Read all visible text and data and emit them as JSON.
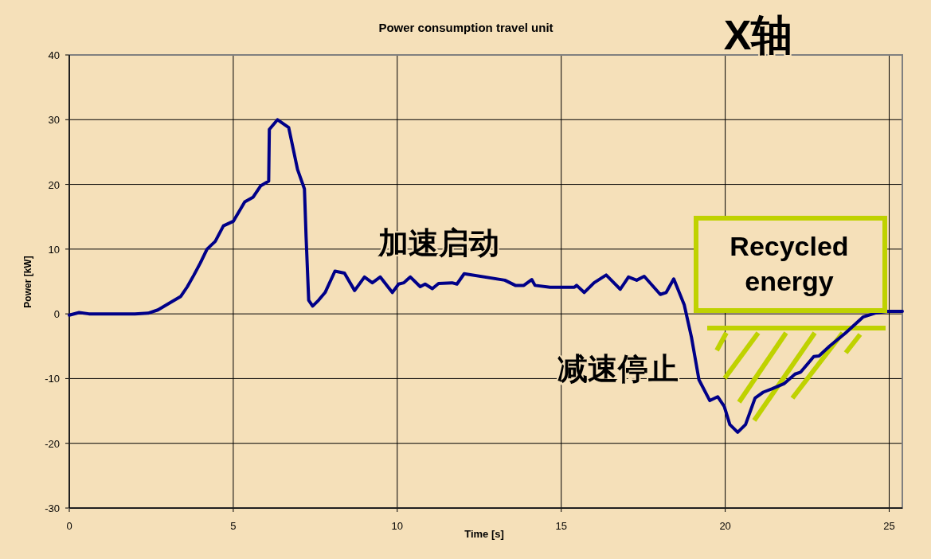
{
  "chart_data": {
    "type": "line",
    "title": "Power consumption travel unit",
    "xlabel": "Time [s]",
    "ylabel": "Power [kW]",
    "annotations": [
      "X轴",
      "加速启动",
      "减速停止",
      "Recycled energy"
    ],
    "xlim": [
      0,
      25.4
    ],
    "ylim": [
      -30,
      40
    ],
    "xticks": [
      0,
      5,
      10,
      15,
      20,
      25
    ],
    "yticks": [
      -30,
      -20,
      -10,
      0,
      10,
      20,
      30,
      40
    ],
    "grid": true,
    "marker": "none",
    "line_style": "solid",
    "series": [
      {
        "color": "#000088",
        "x": [
          0,
          0.3,
          0.6,
          2.0,
          2.4,
          2.7,
          3.1,
          3.4,
          3.6,
          3.8,
          4.0,
          4.2,
          4.45,
          4.7,
          5.0,
          5.35,
          5.6,
          5.84,
          6.08,
          6.1,
          6.35,
          6.69,
          6.96,
          7.17,
          7.22,
          7.3,
          7.42,
          7.6,
          7.8,
          8.1,
          8.39,
          8.7,
          9.0,
          9.24,
          9.48,
          9.85,
          10.04,
          10.2,
          10.4,
          10.7,
          10.85,
          11.07,
          11.26,
          11.67,
          11.82,
          12.04,
          13.28,
          13.6,
          13.86,
          14.1,
          14.2,
          14.66,
          15.4,
          15.47,
          15.7,
          16.0,
          16.37,
          16.8,
          17.05,
          17.3,
          17.53,
          18.02,
          18.2,
          18.43,
          18.75,
          18.97,
          19.2,
          19.53,
          19.77,
          19.97,
          20.14,
          20.38,
          20.62,
          20.91,
          21.16,
          21.42,
          21.79,
          22.13,
          22.3,
          22.7,
          22.86,
          23.18,
          23.66,
          24.2,
          24.56,
          24.95,
          25.4
        ],
        "values": [
          -0.2,
          0.2,
          0,
          0,
          0.1,
          0.6,
          1.8,
          2.7,
          4.2,
          6.0,
          7.9,
          10,
          11.2,
          13.6,
          14.3,
          17.3,
          18.0,
          19.8,
          20.5,
          28.5,
          30.0,
          28.8,
          22.3,
          19.3,
          11.9,
          2.1,
          1.2,
          2.1,
          3.3,
          6.6,
          6.3,
          3.6,
          5.7,
          4.8,
          5.7,
          3.3,
          4.6,
          4.8,
          5.7,
          4.2,
          4.6,
          3.9,
          4.7,
          4.8,
          4.6,
          6.2,
          5.2,
          4.4,
          4.4,
          5.3,
          4.4,
          4.1,
          4.1,
          4.4,
          3.3,
          4.8,
          6.0,
          3.8,
          5.7,
          5.2,
          5.8,
          3.0,
          3.3,
          5.4,
          1.4,
          -3.6,
          -10.2,
          -13.4,
          -12.8,
          -14.3,
          -17.1,
          -18.3,
          -17.1,
          -13.0,
          -12.1,
          -11.6,
          -10.8,
          -9.3,
          -9.0,
          -6.6,
          -6.5,
          -5.0,
          -3.0,
          -0.5,
          0.1,
          0.4,
          0.4
        ]
      }
    ]
  }
}
